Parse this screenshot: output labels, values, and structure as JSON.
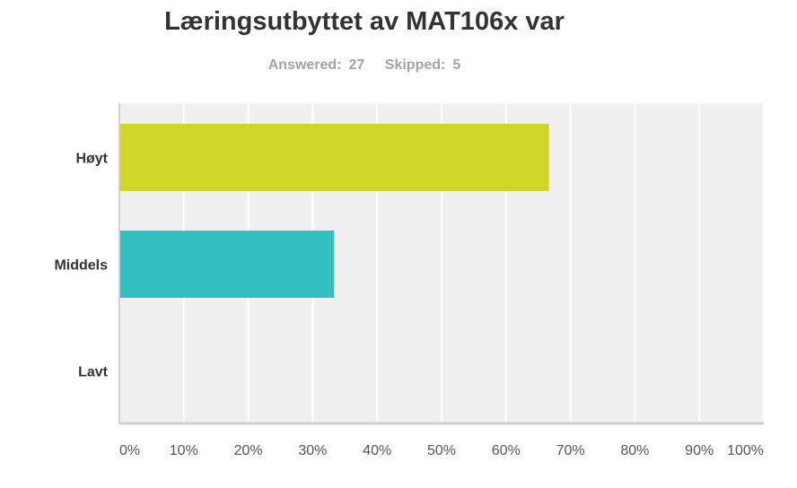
{
  "summary": {
    "answered_label": "Answered:",
    "answered_value": "27",
    "skipped_label": "Skipped:",
    "skipped_value": "5"
  },
  "chart_data": {
    "type": "bar",
    "orientation": "horizontal",
    "title": "Læringsutbyttet av MAT106x var",
    "categories": [
      "Høyt",
      "Middels",
      "Lavt"
    ],
    "series": [
      {
        "values": [
          66.67,
          33.33,
          0
        ]
      }
    ],
    "colors": [
      "#cfd628",
      "#33bfbf",
      "#f7921e"
    ],
    "xlim": [
      0,
      100
    ],
    "xticks": [
      "0%",
      "10%",
      "20%",
      "30%",
      "40%",
      "50%",
      "60%",
      "70%",
      "80%",
      "90%",
      "100%"
    ],
    "grid": true,
    "background": "#f0f0f0"
  }
}
